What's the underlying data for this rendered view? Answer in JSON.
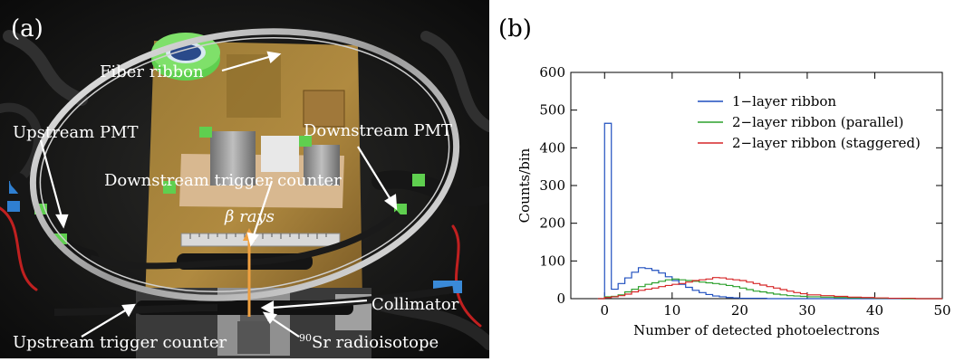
{
  "panel_a": {
    "tag": "(a)",
    "labels": {
      "fiber_ribbon": "Fiber ribbon",
      "upstream_pmt": "Upstream PMT",
      "downstream_pmt": "Downstream PMT",
      "downstream_trigger": "Downstream trigger counter",
      "beta_rays": "β rays",
      "collimator": "Collimator",
      "upstream_trigger": "Upstream trigger counter",
      "source_mass": "90",
      "source_name": "Sr radioisotope"
    }
  },
  "panel_b": {
    "tag": "(b)",
    "chart_data": {
      "type": "line",
      "xlabel": "Number of detected photoelectrons",
      "ylabel": "Counts/bin",
      "xlim": [
        -5,
        50
      ],
      "ylim": [
        0,
        600
      ],
      "xticks": [
        0,
        10,
        20,
        30,
        40,
        50
      ],
      "yticks": [
        0,
        100,
        200,
        300,
        400,
        500,
        600
      ],
      "legend_position": "top-right",
      "series": [
        {
          "name": "1−layer ribbon",
          "color": "#1f4fbf",
          "x": [
            -1,
            0,
            1,
            2,
            3,
            4,
            5,
            6,
            7,
            8,
            9,
            10,
            11,
            12,
            13,
            14,
            15,
            16,
            17,
            18,
            19,
            20,
            22,
            24
          ],
          "y": [
            0,
            465,
            25,
            40,
            55,
            70,
            82,
            80,
            75,
            68,
            58,
            48,
            38,
            30,
            22,
            16,
            11,
            7,
            5,
            3,
            2,
            1,
            1,
            0
          ]
        },
        {
          "name": "2−layer ribbon (parallel)",
          "color": "#2ca02c",
          "x": [
            -1,
            0,
            1,
            2,
            3,
            4,
            5,
            6,
            7,
            8,
            9,
            10,
            11,
            12,
            13,
            14,
            15,
            16,
            17,
            18,
            19,
            20,
            21,
            22,
            23,
            24,
            25,
            26,
            27,
            28,
            29,
            30,
            32,
            34,
            36,
            38,
            40,
            42,
            44
          ],
          "y": [
            0,
            5,
            6,
            10,
            18,
            25,
            32,
            38,
            42,
            46,
            50,
            52,
            50,
            48,
            46,
            44,
            42,
            40,
            38,
            35,
            32,
            28,
            24,
            20,
            18,
            15,
            12,
            10,
            8,
            7,
            6,
            5,
            4,
            3,
            2,
            2,
            1,
            1,
            0
          ]
        },
        {
          "name": "2−layer ribbon (staggered)",
          "color": "#d62728",
          "x": [
            -1,
            0,
            1,
            2,
            3,
            4,
            5,
            6,
            7,
            8,
            9,
            10,
            11,
            12,
            13,
            14,
            15,
            16,
            17,
            18,
            19,
            20,
            21,
            22,
            23,
            24,
            25,
            26,
            27,
            28,
            29,
            30,
            32,
            34,
            36,
            38,
            40,
            42,
            44,
            46
          ],
          "y": [
            0,
            3,
            5,
            8,
            12,
            18,
            22,
            25,
            28,
            32,
            35,
            38,
            40,
            44,
            48,
            50,
            52,
            56,
            55,
            52,
            50,
            48,
            44,
            40,
            36,
            32,
            28,
            24,
            20,
            16,
            13,
            10,
            8,
            6,
            4,
            3,
            2,
            1,
            1,
            0
          ]
        }
      ]
    }
  }
}
